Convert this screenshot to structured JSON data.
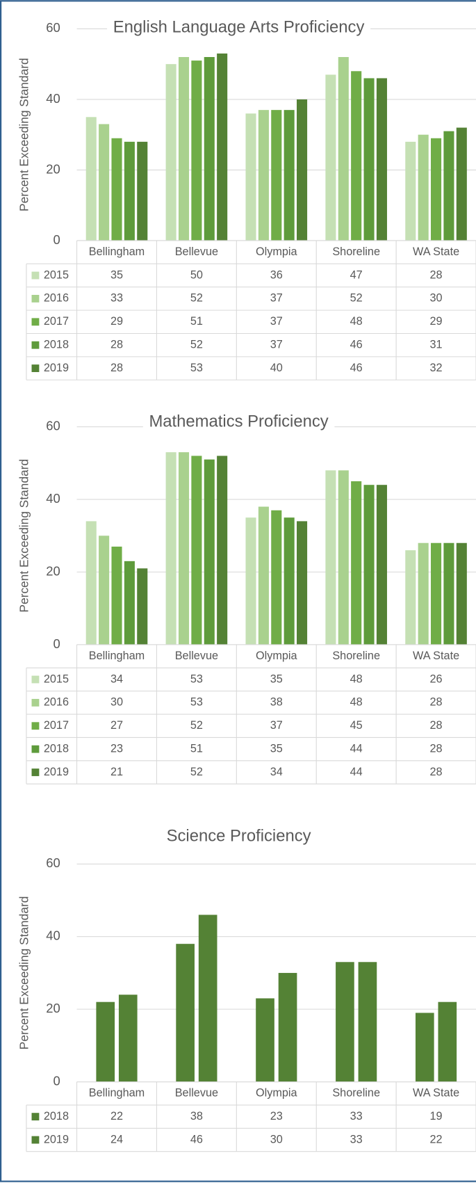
{
  "chart_data": [
    {
      "type": "bar",
      "title": "English Language Arts Proficiency",
      "y_label": "Percent Exceeding Standard",
      "categories": [
        "Bellingham",
        "Bellevue",
        "Olympia",
        "Shoreline",
        "WA State"
      ],
      "series": [
        {
          "name": "2015",
          "color": "#c5e0b4",
          "values": [
            35,
            50,
            36,
            47,
            28
          ]
        },
        {
          "name": "2016",
          "color": "#a9d18e",
          "values": [
            33,
            52,
            37,
            52,
            30
          ]
        },
        {
          "name": "2017",
          "color": "#70ad47",
          "values": [
            29,
            51,
            37,
            48,
            29
          ]
        },
        {
          "name": "2018",
          "color": "#5e9b3b",
          "values": [
            28,
            52,
            37,
            46,
            31
          ]
        },
        {
          "name": "2019",
          "color": "#548235",
          "values": [
            28,
            53,
            40,
            46,
            32
          ]
        }
      ],
      "ylim": [
        0,
        60
      ],
      "yticks": [
        0,
        20,
        40,
        60
      ],
      "grid": true
    },
    {
      "type": "bar",
      "title": "Mathematics Proficiency",
      "y_label": "Percent Exceeding Standard",
      "categories": [
        "Bellingham",
        "Bellevue",
        "Olympia",
        "Shoreline",
        "WA State"
      ],
      "series": [
        {
          "name": "2015",
          "color": "#c5e0b4",
          "values": [
            34,
            53,
            35,
            48,
            26
          ]
        },
        {
          "name": "2016",
          "color": "#a9d18e",
          "values": [
            30,
            53,
            38,
            48,
            28
          ]
        },
        {
          "name": "2017",
          "color": "#70ad47",
          "values": [
            27,
            52,
            37,
            45,
            28
          ]
        },
        {
          "name": "2018",
          "color": "#5e9b3b",
          "values": [
            23,
            51,
            35,
            44,
            28
          ]
        },
        {
          "name": "2019",
          "color": "#548235",
          "values": [
            21,
            52,
            34,
            44,
            28
          ]
        }
      ],
      "ylim": [
        0,
        60
      ],
      "yticks": [
        0,
        20,
        40,
        60
      ],
      "grid": true
    },
    {
      "type": "bar",
      "title": "Science Proficiency",
      "y_label": "Percent Exceeding Standard",
      "categories": [
        "Bellingham",
        "Bellevue",
        "Olympia",
        "Shoreline",
        "WA State"
      ],
      "series": [
        {
          "name": "2018",
          "color": "#548235",
          "values": [
            22,
            38,
            23,
            33,
            19
          ]
        },
        {
          "name": "2019",
          "color": "#548235",
          "values": [
            24,
            46,
            30,
            33,
            22
          ]
        }
      ],
      "ylim": [
        0,
        60
      ],
      "yticks": [
        0,
        20,
        40,
        60
      ],
      "grid": true
    }
  ]
}
